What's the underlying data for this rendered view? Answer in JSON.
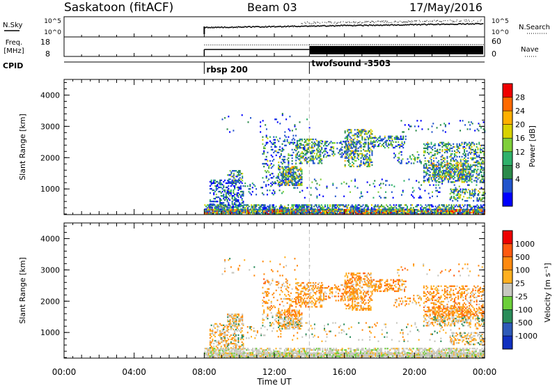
{
  "header": {
    "site": "Saskatoon (fitACF)",
    "beam": "Beam 03",
    "date": "17/May/2016"
  },
  "top_panels": {
    "nsky_label": "N.Sky",
    "nsky_ticks": [
      "10^5",
      "10^0"
    ],
    "nsearch_label": "N.Search",
    "nsearch_ticks": [
      "10^5",
      "10^0"
    ],
    "freq_label_1": "Freq.",
    "freq_label_2": "[MHz]",
    "freq_ticks": [
      "18",
      "8"
    ],
    "nave_label": "Nave",
    "nave_ticks": [
      "60",
      "0"
    ],
    "cpid_label": "CPID",
    "cpid_entries": [
      {
        "name": "rbsp 200",
        "start_hour": 8
      },
      {
        "name": "twofsound -3503",
        "start_hour": 14
      }
    ]
  },
  "power_panel": {
    "ylabel": "Slant Range [km]",
    "y_ticks": [
      "1000",
      "2000",
      "3000",
      "4000"
    ],
    "colorbar_label": "Power [dB]",
    "colorbar_ticks": [
      "28",
      "24",
      "20",
      "16",
      "12",
      "8",
      "4"
    ],
    "colors": [
      "#0000ff",
      "#2255cc",
      "#2a8a4a",
      "#2fb16b",
      "#7fcf3a",
      "#d9d200",
      "#ffb000",
      "#ff6a00",
      "#f00000"
    ]
  },
  "velocity_panel": {
    "ylabel": "Slant Range [km]",
    "y_ticks": [
      "1000",
      "2000",
      "3000",
      "4000"
    ],
    "colorbar_label": "Velocity [m s⁻¹]",
    "colorbar_ticks": [
      "1000",
      "500",
      "100",
      "25",
      "-25",
      "-100",
      "-500",
      "-1000"
    ],
    "colors": [
      "#1030c0",
      "#2e5ab8",
      "#2a8c5a",
      "#6ccf3a",
      "#c8c8c0",
      "#ffb020",
      "#ff8a10",
      "#ff5a10",
      "#ee0000"
    ]
  },
  "x_axis": {
    "label": "Time UT",
    "ticks": [
      "00:00",
      "04:00",
      "08:00",
      "12:00",
      "16:00",
      "20:00",
      "00:00"
    ]
  },
  "chart_data": {
    "type": "heatmap",
    "title": "Saskatoon (fitACF)",
    "subtitle": "Beam 03",
    "x_range_hours": [
      0,
      24
    ],
    "y_range_km": [
      180,
      4500
    ],
    "data_start_hour": 8,
    "mode_change_hour": 14,
    "power_scale_db": [
      0,
      32
    ],
    "velocity_scale": [
      -1000,
      1000
    ]
  }
}
